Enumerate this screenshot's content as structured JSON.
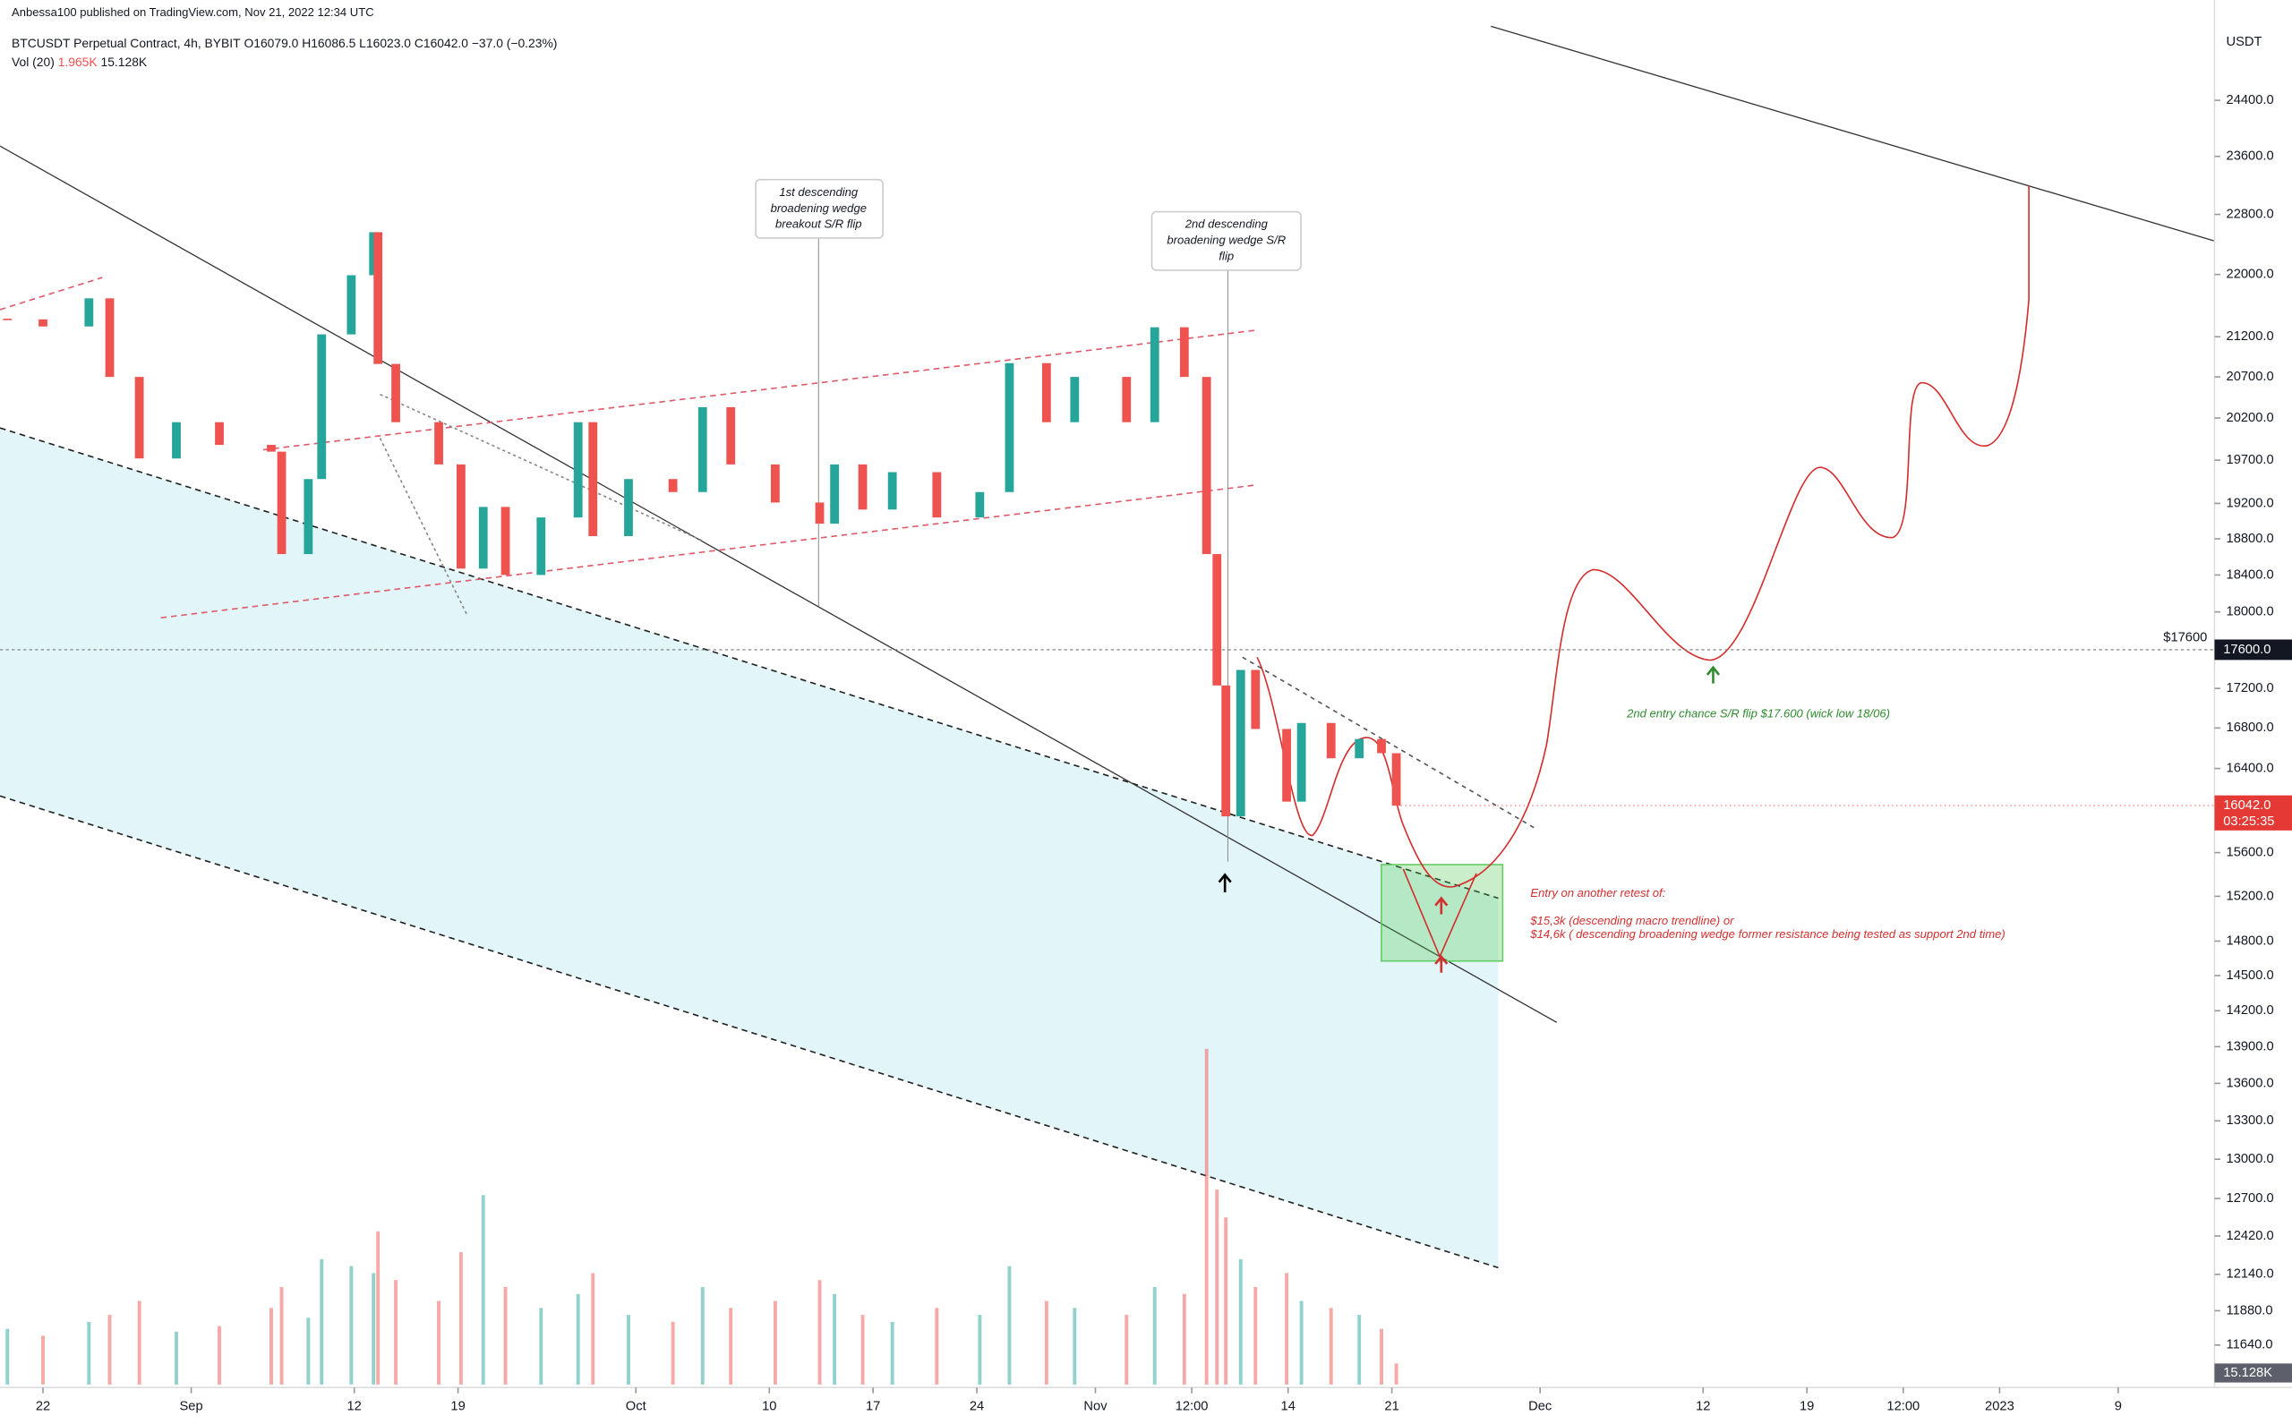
{
  "header": {
    "publisher": "Anbessa100 published on TradingView.com, Nov 21, 2022 12:34 UTC",
    "symbol": "BTCUSDT Perpetual Contract, 4h, BYBIT",
    "ohlc": "O16079.0 H16086.5 L16023.0 C16042.0 −37.0 (−0.23%)",
    "volume_label": "Vol (20)",
    "volume_ma": "1.965K",
    "volume_last": "15.128K"
  },
  "chart_data": {
    "type": "candlestick",
    "y_unit": "USDT",
    "log_scale": true,
    "up_color": "#26a69a",
    "down_color": "#ef5350",
    "x": [
      -2.4,
      0,
      3.1,
      4.5,
      6.5,
      9,
      11.9,
      15.4,
      16.1,
      17.9,
      18.8,
      20.8,
      22.3,
      22.6,
      23.8,
      26.7,
      28.2,
      29.7,
      31.2,
      33.6,
      36.1,
      37.1,
      39.5,
      42.5,
      44.5,
      46.4,
      49.4,
      52.4,
      53.4,
      55.3,
      57.3,
      60.3,
      63.2,
      65.2,
      67.7,
      69.6,
      73.1,
      75,
      77,
      78.5,
      79.2,
      79.8,
      80.8,
      81.8,
      83.9,
      84.9,
      86.9,
      88.8,
      90.3,
      91.3
    ],
    "closes": [
      21420,
      21330,
      21690,
      20700,
      19720,
      20150,
      19880,
      19800,
      18630,
      19480,
      21230,
      21990,
      22560,
      20860,
      20150,
      19650,
      18470,
      19160,
      18400,
      19040,
      20150,
      18830,
      19480,
      19330,
      20330,
      19650,
      19210,
      18970,
      19650,
      19130,
      19560,
      19040,
      19330,
      20870,
      20150,
      20700,
      20150,
      21320,
      20700,
      18630,
      17230,
      15940,
      17390,
      16790,
      16080,
      16850,
      16500,
      16690,
      16550,
      16042
    ],
    "volumes": [
      40,
      35,
      45,
      50,
      60,
      38,
      42,
      55,
      70,
      48,
      90,
      85,
      80,
      110,
      75,
      60,
      95,
      136,
      70,
      55,
      65,
      80,
      50,
      45,
      70,
      55,
      60,
      75,
      65,
      50,
      45,
      55,
      50,
      85,
      60,
      55,
      50,
      70,
      65,
      241,
      140,
      120,
      90,
      70,
      80,
      60,
      55,
      50,
      40,
      15.128
    ],
    "xlim": [
      -2.9,
      146.5
    ],
    "ylim": [
      11350,
      25900
    ],
    "vlim": [
      0,
      260
    ],
    "xticks": [
      {
        "value": 0,
        "label": "22"
      },
      {
        "value": 10,
        "label": "Sep"
      },
      {
        "value": 21,
        "label": "12"
      },
      {
        "value": 28,
        "label": "19"
      },
      {
        "value": 40,
        "label": "Oct"
      },
      {
        "value": 49,
        "label": "10"
      },
      {
        "value": 56,
        "label": "17"
      },
      {
        "value": 63,
        "label": "24"
      },
      {
        "value": 71,
        "label": "Nov"
      },
      {
        "value": 77.5,
        "label": "12:00"
      },
      {
        "value": 84,
        "label": "14"
      },
      {
        "value": 91,
        "label": "21"
      },
      {
        "value": 101,
        "label": "Dec"
      },
      {
        "value": 112,
        "label": "12"
      },
      {
        "value": 119,
        "label": "19"
      },
      {
        "value": 125.5,
        "label": "12:00"
      },
      {
        "value": 132,
        "label": "2023"
      },
      {
        "value": 140,
        "label": "9"
      }
    ],
    "yticks": [
      {
        "value": 24400,
        "label": "24400.0"
      },
      {
        "value": 23600,
        "label": "23600.0"
      },
      {
        "value": 22800,
        "label": "22800.0"
      },
      {
        "value": 22000,
        "label": "22000.0"
      },
      {
        "value": 21200,
        "label": "21200.0"
      },
      {
        "value": 20700,
        "label": "20700.0"
      },
      {
        "value": 20200,
        "label": "20200.0"
      },
      {
        "value": 19700,
        "label": "19700.0"
      },
      {
        "value": 19200,
        "label": "19200.0"
      },
      {
        "value": 18800,
        "label": "18800.0"
      },
      {
        "value": 18400,
        "label": "18400.0"
      },
      {
        "value": 18000,
        "label": "18000.0"
      },
      {
        "value": 17200,
        "label": "17200.0"
      },
      {
        "value": 16800,
        "label": "16800.0"
      },
      {
        "value": 16400,
        "label": "16400.0"
      },
      {
        "value": 15600,
        "label": "15600.0"
      },
      {
        "value": 15200,
        "label": "15200.0"
      },
      {
        "value": 14800,
        "label": "14800.0"
      },
      {
        "value": 14500,
        "label": "14500.0"
      },
      {
        "value": 14200,
        "label": "14200.0"
      },
      {
        "value": 13900,
        "label": "13900.0"
      },
      {
        "value": 13600,
        "label": "13600.0"
      },
      {
        "value": 13300,
        "label": "13300.0"
      },
      {
        "value": 13000,
        "label": "13000.0"
      },
      {
        "value": 12700,
        "label": "12700.0"
      },
      {
        "value": 12420,
        "label": "12420.0"
      },
      {
        "value": 12140,
        "label": "12140.0"
      },
      {
        "value": 11880,
        "label": "11880.0"
      },
      {
        "value": 11640,
        "label": "11640.0"
      }
    ],
    "price_line": {
      "value": 17600,
      "label": "$17600",
      "tag": "17600.0"
    },
    "last_price": {
      "value": 16042,
      "label": "16042.0",
      "countdown": "03:25:35"
    },
    "last_volume": {
      "value": 15.128,
      "label": "15.128K"
    },
    "annotations": {
      "first_flip": [
        "1st descending",
        "broadening wedge",
        "breakout S/R flip"
      ],
      "second_flip": [
        "2nd descending",
        "broadening wedge S/R",
        "flip"
      ],
      "entry_chance": "2nd entry chance S/R flip $17.600 (wick low 18/06)",
      "entry_title": "Entry on another retest of:",
      "entry_line1": "$15,3k (descending macro trendline) or",
      "entry_line2": "$14,6k ( descending broadening wedge former resistance being tested as support 2nd time)"
    }
  }
}
